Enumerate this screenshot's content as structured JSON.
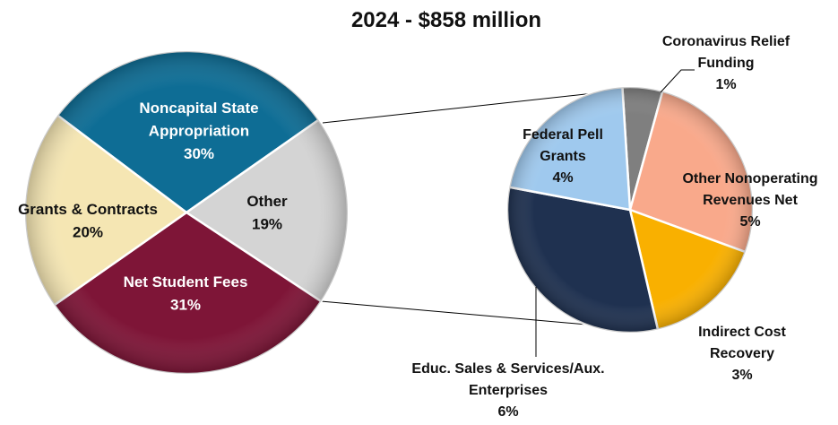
{
  "chart_data": {
    "type": "pie",
    "title": "2024 - $858 million",
    "main_pie": {
      "slices": [
        {
          "label": "Noncapital State Appropriation",
          "value_label": "30%",
          "value": 30,
          "color": "#0e6d95"
        },
        {
          "label": "Other",
          "value_label": "19%",
          "value": 19,
          "color": "#d4d4d4"
        },
        {
          "label": "Net Student Fees",
          "value_label": "31%",
          "value": 31,
          "color": "#7e1537"
        },
        {
          "label": "Grants & Contracts",
          "value_label": "20%",
          "value": 20,
          "color": "#f5e6b3"
        }
      ]
    },
    "breakout_pie": {
      "breaks_out": "Other",
      "slices": [
        {
          "label": "Coronavirus Relief Funding",
          "value_label": "1%",
          "value": 1,
          "color": "#7f7f7f"
        },
        {
          "label": "Other Nonoperating Revenues Net",
          "value_label": "5%",
          "value": 5,
          "color": "#f9a98b"
        },
        {
          "label": "Indirect Cost Recovery",
          "value_label": "3%",
          "value": 3,
          "color": "#f9b000"
        },
        {
          "label": "Educ. Sales & Services/Aux. Enterprises",
          "value_label": "6%",
          "value": 6,
          "color": "#1f3150"
        },
        {
          "label": "Federal Pell Grants",
          "value_label": "4%",
          "value": 4,
          "color": "#9fc9ee"
        }
      ]
    }
  }
}
